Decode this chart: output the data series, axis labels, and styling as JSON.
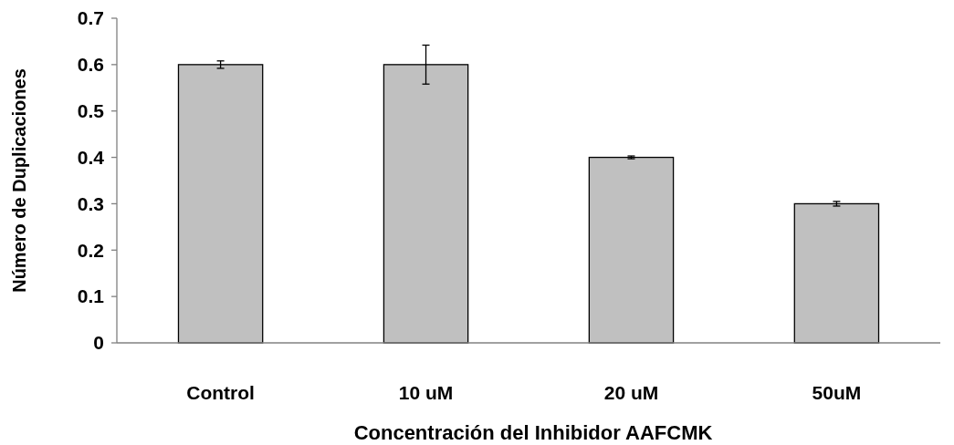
{
  "chart_data": {
    "type": "bar",
    "xlabel": "Concentración del Inhibidor  AAFCMK",
    "ylabel": "Número de Duplicaciones",
    "categories": [
      "Control",
      "10 uM",
      "20 uM",
      "50uM"
    ],
    "values": [
      0.6,
      0.6,
      0.4,
      0.3
    ],
    "errors": [
      0.008,
      0.042,
      0.003,
      0.005
    ],
    "color": "#c0c0c0",
    "ylim": [
      0,
      0.7
    ],
    "yticks": [
      0,
      0.1,
      0.2,
      0.3,
      0.4,
      0.5,
      0.6,
      0.7
    ],
    "grid": false
  }
}
